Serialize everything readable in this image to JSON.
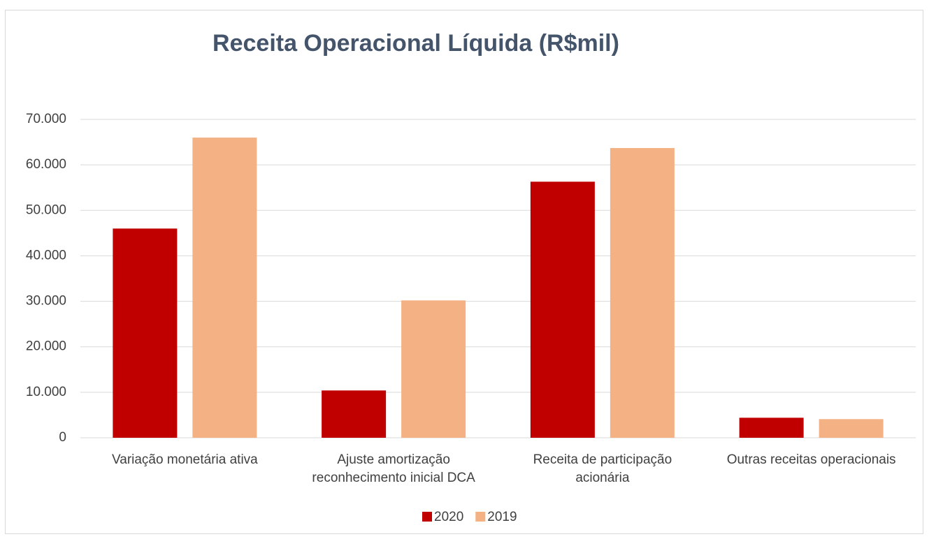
{
  "chart_data": {
    "type": "bar",
    "title": "Receita Operacional Líquida (R$mil)",
    "categories": [
      "Variação monetária ativa",
      "Ajuste amortização reconhecimento inicial DCA",
      "Receita de participação acionária",
      "Outras receitas operacionais"
    ],
    "series": [
      {
        "name": "2020",
        "color": "#c00000",
        "values": [
          46000,
          10400,
          56300,
          4400
        ]
      },
      {
        "name": "2019",
        "color": "#f4b183",
        "values": [
          66000,
          30200,
          63700,
          4100
        ]
      }
    ],
    "ylim": [
      0,
      70000
    ],
    "yticks": [
      0,
      {
        "value": 10000,
        "label": "10.000"
      },
      {
        "value": 20000,
        "label": "20.000"
      },
      {
        "value": 30000,
        "label": "30.000"
      },
      {
        "value": 40000,
        "label": "40.000"
      },
      {
        "value": 50000,
        "label": "50.000"
      },
      {
        "value": 60000,
        "label": "60.000"
      },
      {
        "value": 70000,
        "label": "70.000"
      }
    ],
    "grid": true,
    "legend": "bottom"
  }
}
